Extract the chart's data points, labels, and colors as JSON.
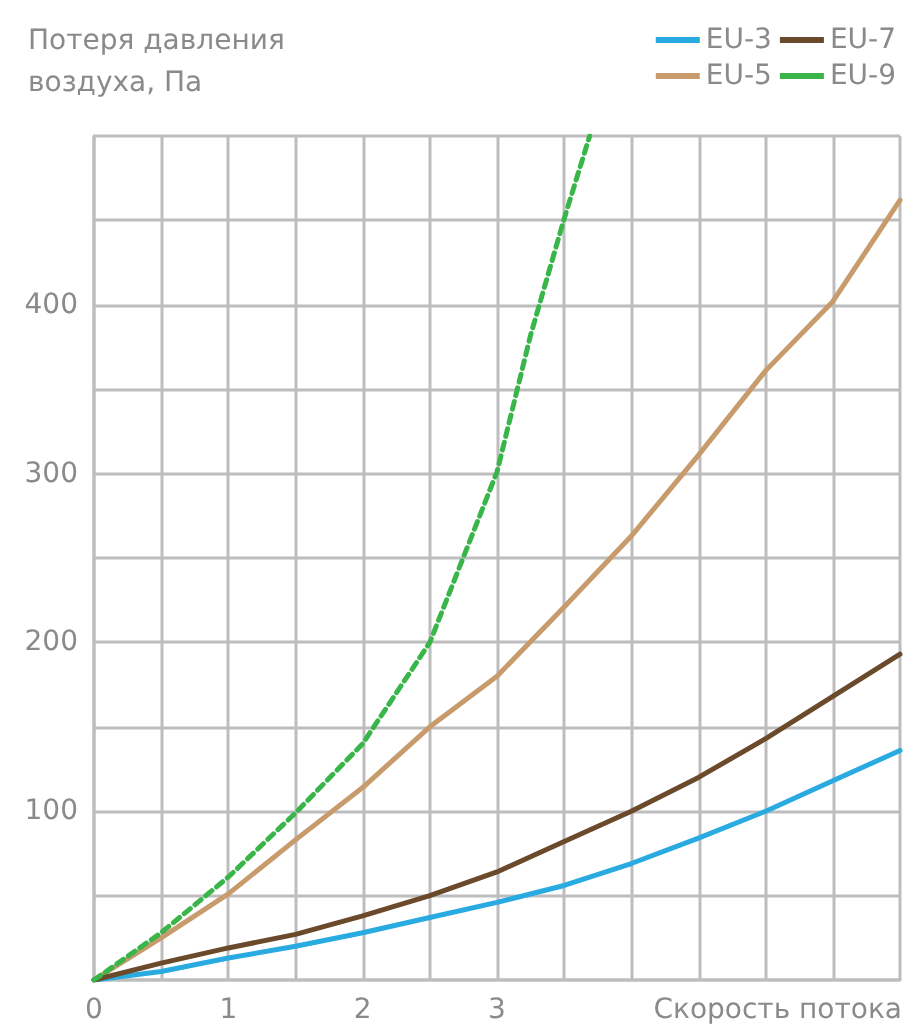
{
  "chart_data": {
    "type": "line",
    "ylabel": "Потеря давления воздуха, Па",
    "xlabel": "Скорость потока",
    "xlim": [
      0,
      6
    ],
    "xticks": [
      0,
      {
        "value": 0.5,
        "label": null
      },
      1,
      {
        "value": 1.5,
        "label": null
      },
      2,
      {
        "value": 2.5,
        "label": null
      },
      3,
      {
        "value": 3.5,
        "label": null
      },
      {
        "value": 4,
        "label": null
      },
      {
        "value": 4.5,
        "label": null
      },
      {
        "value": 5,
        "label": null
      },
      {
        "value": 5.5,
        "label": null
      },
      {
        "value": 6,
        "label": null
      }
    ],
    "ylim": [
      0,
      500
    ],
    "yticks": [
      {
        "value": 0,
        "label": null
      },
      {
        "value": 50,
        "label": null
      },
      100,
      {
        "value": 150,
        "label": null
      },
      200,
      {
        "value": 250,
        "label": null
      },
      300,
      {
        "value": 350,
        "label": null
      },
      400,
      {
        "value": 450,
        "label": null
      },
      {
        "value": 500,
        "label": null
      }
    ],
    "grid": true,
    "legend": "top right",
    "marker": "none",
    "series": [
      {
        "name": "EU-3",
        "color": "#29abe2",
        "x": [
          0,
          0.5,
          1,
          1.5,
          2,
          2.5,
          3,
          3.5,
          4,
          4.5,
          5,
          5.5,
          6
        ],
        "values": [
          0,
          5,
          13,
          20,
          28,
          37,
          46,
          56,
          69,
          84,
          100,
          118,
          136
        ]
      },
      {
        "name": "EU-5",
        "color": "#c89b6c",
        "x": [
          0,
          0.5,
          1,
          1.5,
          2,
          2.5,
          3,
          3.5,
          4,
          4.5,
          5,
          5.5,
          6
        ],
        "values": [
          0,
          25,
          51,
          83,
          114,
          150,
          180,
          221,
          263,
          311,
          361,
          402,
          462
        ]
      },
      {
        "name": "EU-7",
        "color": "#6b4a2b",
        "x": [
          0,
          0.5,
          1,
          1.5,
          2,
          2.5,
          3,
          3.5,
          4,
          4.5,
          5,
          5.5,
          6
        ],
        "values": [
          0,
          10,
          19,
          27,
          38,
          50,
          64,
          82,
          100,
          120,
          143,
          168,
          193
        ]
      },
      {
        "name": "EU-9",
        "color": "#39b54a",
        "line_style": "dashed",
        "x": [
          0,
          0.5,
          1,
          1.5,
          2,
          2.5,
          3,
          3.25,
          3.5,
          3.69
        ],
        "values": [
          0,
          28,
          61,
          99,
          140,
          200,
          301,
          382,
          451,
          500
        ]
      }
    ]
  }
}
